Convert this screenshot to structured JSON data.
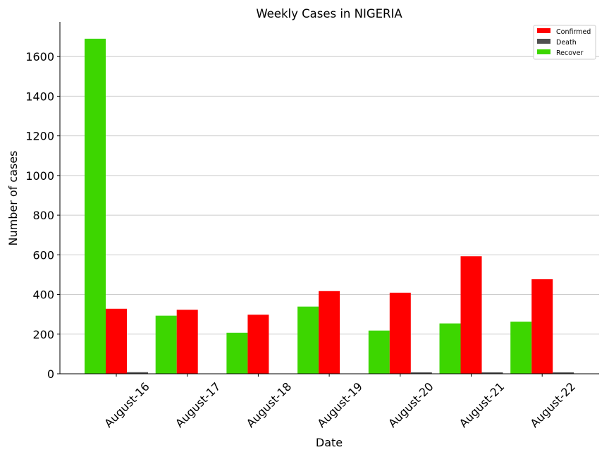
{
  "chart_data": {
    "type": "bar",
    "title": "Weekly Cases in NIGERIA",
    "xlabel": "Date",
    "ylabel": "Number of cases",
    "categories": [
      "August-16",
      "August-17",
      "August-18",
      "August-19",
      "August-20",
      "August-21",
      "August-22"
    ],
    "series": [
      {
        "name": "Recover",
        "color": "#3dd600",
        "values": [
          1690,
          293,
          207,
          339,
          218,
          254,
          263
        ]
      },
      {
        "name": "Confirmed",
        "color": "#ff0000",
        "values": [
          328,
          323,
          298,
          417,
          409,
          593,
          477
        ]
      },
      {
        "name": "Death",
        "color": "#505050",
        "values": [
          8,
          0,
          0,
          0,
          4,
          3,
          7
        ]
      }
    ],
    "legend_order": [
      "Confirmed",
      "Death",
      "Recover"
    ],
    "yticks": [
      0,
      200,
      400,
      600,
      800,
      1000,
      1200,
      1400,
      1600
    ],
    "ylim": [
      0,
      1775
    ],
    "grid": "y",
    "legend_position": "top-right"
  }
}
